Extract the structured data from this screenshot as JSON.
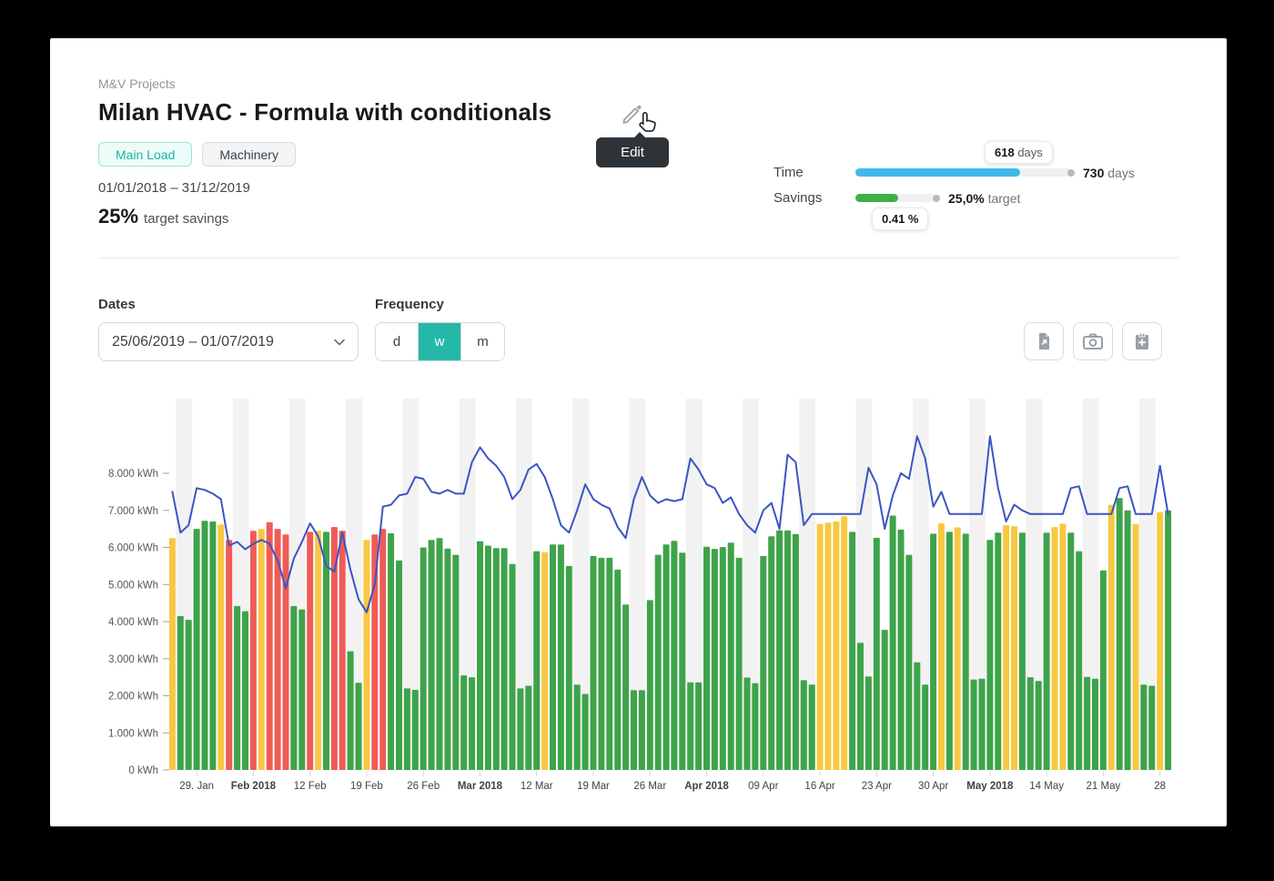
{
  "breadcrumb": "M&V Projects",
  "title": "Milan HVAC - Formula with conditionals",
  "edit_tooltip": "Edit",
  "tags": [
    {
      "label": "Main Load",
      "style": "teal"
    },
    {
      "label": "Machinery",
      "style": "gray"
    }
  ],
  "period": "01/01/2018 – 31/12/2019",
  "target": {
    "value": "25%",
    "label": "target savings"
  },
  "progress": {
    "time": {
      "label": "Time",
      "badge_value": "618",
      "badge_unit": "days",
      "end_value": "730",
      "end_unit": "days",
      "fill_pct": 76,
      "color": "#41B9E9"
    },
    "savings": {
      "label": "Savings",
      "target_value": "25,0%",
      "target_label": "target",
      "badge_value": "0.41 %",
      "fill_pct": 52,
      "color": "#3FAE49"
    }
  },
  "filters": {
    "dates_label": "Dates",
    "dates_value": "25/06/2019 – 01/07/2019",
    "frequency_label": "Frequency",
    "frequency_options": [
      "d",
      "w",
      "m"
    ],
    "frequency_selected": "w"
  },
  "toolbar_icons": [
    "export-document-icon",
    "camera-icon",
    "clipboard-add-icon"
  ],
  "chart_data": {
    "type": "bar",
    "unit": "kWh",
    "title": "",
    "xlabel": "",
    "ylabel": "kWh",
    "ylim": [
      0,
      9200
    ],
    "grid": false,
    "legend": "none",
    "y_ticks": {
      "values": [
        0,
        1000,
        2000,
        3000,
        4000,
        5000,
        6000,
        7000,
        8000
      ],
      "labels": [
        "0 kWh",
        "1.000 kWh",
        "2.000 kWh",
        "3.000 kWh",
        "4.000 kWh",
        "5.000 kWh",
        "6.000 kWh",
        "7.000 kWh",
        "8.000 kWh"
      ]
    },
    "x_ticks": {
      "indices": [
        3,
        10,
        17,
        24,
        31,
        38,
        45,
        52,
        59,
        66,
        73,
        80,
        87,
        94,
        101,
        108,
        115,
        122
      ],
      "labels": [
        "29. Jan",
        "Feb 2018",
        "12 Feb",
        "19 Feb",
        "26 Feb",
        "Mar 2018",
        "12 Mar",
        "19 Mar",
        "26 Mar",
        "Apr 2018",
        "09 Apr",
        "16 Apr",
        "23 Apr",
        "30 Apr",
        "May 2018",
        "14 May",
        "21 May",
        "28"
      ],
      "bold": [
        false,
        true,
        false,
        false,
        false,
        true,
        false,
        false,
        false,
        true,
        false,
        false,
        false,
        false,
        true,
        false,
        false,
        false
      ]
    },
    "bar_colors_map": {
      "g": "#3EA34A",
      "y": "#F7C843",
      "r": "#EF5B56"
    },
    "weekend_band_color": "#F2F2F2",
    "bars": {
      "values": [
        6250,
        4150,
        4050,
        6500,
        6720,
        6700,
        6620,
        6200,
        4420,
        4280,
        6450,
        6500,
        6680,
        6500,
        6350,
        4420,
        4330,
        6420,
        6450,
        6420,
        6550,
        6450,
        3200,
        2350,
        6200,
        6350,
        6500,
        6380,
        5650,
        2200,
        2160,
        6000,
        6200,
        6250,
        5970,
        5800,
        2550,
        2500,
        6170,
        6050,
        5980,
        5980,
        5550,
        2200,
        2270,
        5900,
        5870,
        6080,
        6080,
        5500,
        2300,
        2050,
        5770,
        5720,
        5720,
        5400,
        4460,
        2150,
        2150,
        4580,
        5800,
        6080,
        6180,
        5860,
        2360,
        2360,
        6020,
        5960,
        6010,
        6130,
        5720,
        2490,
        2340,
        5770,
        6300,
        6460,
        6460,
        6360,
        2420,
        2300,
        6630,
        6670,
        6700,
        6840,
        6420,
        3430,
        2520,
        6260,
        3780,
        6860,
        6480,
        5800,
        2900,
        2300,
        6370,
        6650,
        6420,
        6540,
        6370,
        2440,
        2460,
        6200,
        6400,
        6600,
        6570,
        6400,
        2500,
        2400,
        6400,
        6550,
        6640,
        6400,
        5900,
        2510,
        2460,
        5380,
        7150,
        7330,
        7000,
        6630,
        2300,
        2270,
        6950,
        7000
      ],
      "colors": [
        "y",
        "g",
        "g",
        "g",
        "g",
        "g",
        "y",
        "r",
        "g",
        "g",
        "r",
        "y",
        "r",
        "r",
        "r",
        "g",
        "g",
        "r",
        "y",
        "g",
        "r",
        "r",
        "g",
        "g",
        "y",
        "r",
        "r",
        "g",
        "g",
        "g",
        "g",
        "g",
        "g",
        "g",
        "g",
        "g",
        "g",
        "g",
        "g",
        "g",
        "g",
        "g",
        "g",
        "g",
        "g",
        "g",
        "y",
        "g",
        "g",
        "g",
        "g",
        "g",
        "g",
        "g",
        "g",
        "g",
        "g",
        "g",
        "g",
        "g",
        "g",
        "g",
        "g",
        "g",
        "g",
        "g",
        "g",
        "g",
        "g",
        "g",
        "g",
        "g",
        "g",
        "g",
        "g",
        "g",
        "g",
        "g",
        "g",
        "g",
        "y",
        "y",
        "y",
        "y",
        "g",
        "g",
        "g",
        "g",
        "g",
        "g",
        "g",
        "g",
        "g",
        "g",
        "g",
        "y",
        "g",
        "y",
        "g",
        "g",
        "g",
        "g",
        "g",
        "y",
        "y",
        "g",
        "g",
        "g",
        "g",
        "y",
        "y",
        "g",
        "g",
        "g",
        "g",
        "g",
        "y",
        "g",
        "g",
        "y",
        "g",
        "g",
        "y",
        "g"
      ]
    },
    "line": {
      "name": "baseline",
      "color": "#3B55C4",
      "values": [
        7500,
        6400,
        6600,
        7600,
        7550,
        7450,
        7300,
        6050,
        6150,
        5950,
        6100,
        6200,
        6100,
        5650,
        4900,
        5700,
        6150,
        6650,
        6300,
        5500,
        5350,
        6400,
        5400,
        4600,
        4250,
        5000,
        7100,
        7150,
        7400,
        7450,
        7900,
        7850,
        7500,
        7450,
        7550,
        7450,
        7450,
        8300,
        8700,
        8400,
        8200,
        7900,
        7300,
        7550,
        8100,
        8250,
        7900,
        7300,
        6600,
        6400,
        7000,
        7700,
        7300,
        7150,
        7050,
        6550,
        6250,
        7300,
        7900,
        7400,
        7200,
        7300,
        7250,
        7300,
        8400,
        8100,
        7700,
        7600,
        7200,
        7350,
        6900,
        6600,
        6400,
        7000,
        7200,
        6500,
        8500,
        8300,
        6600,
        6900,
        6900,
        6900,
        6900,
        6900,
        6900,
        6900,
        8150,
        7700,
        6500,
        7400,
        8000,
        7850,
        9000,
        8400,
        7100,
        7500,
        6900,
        6900,
        6900,
        6900,
        6900,
        9000,
        7600,
        6700,
        7150,
        7000,
        6900,
        6900,
        6900,
        6900,
        6900,
        7600,
        7650,
        6900,
        6900,
        6900,
        6900,
        7600,
        7650,
        6900,
        6900,
        6900,
        8200,
        6900
      ]
    }
  }
}
